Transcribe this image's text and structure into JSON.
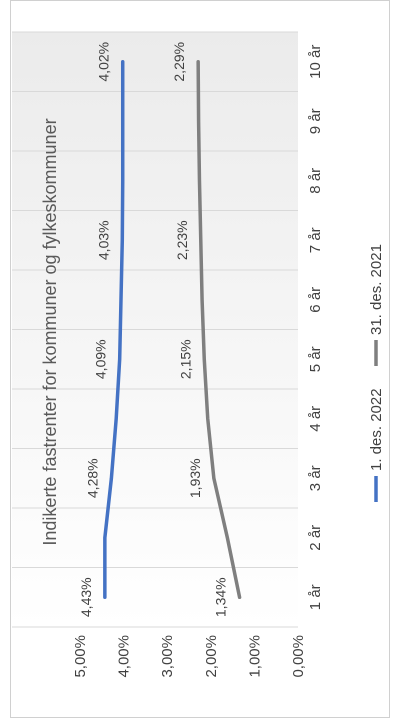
{
  "chart_data": {
    "type": "line",
    "orientation": "rotated-90-ccw",
    "title": "Indikerte fastrenter for kommuner og fylkeskommuner",
    "xlabel": "",
    "ylabel": "",
    "categories": [
      "1 år",
      "2 år",
      "3 år",
      "4 år",
      "5 år",
      "6 år",
      "7 år",
      "8 år",
      "9 år",
      "10 år"
    ],
    "ylim": [
      0,
      5
    ],
    "y_tick_labels": [
      "0,00%",
      "1,00%",
      "2,00%",
      "3,00%",
      "4,00%",
      "5,00%"
    ],
    "grid": true,
    "legend_position": "bottom",
    "series": [
      {
        "name": "1. des. 2022",
        "color": "#4472c4",
        "values": [
          4.43,
          4.43,
          4.28,
          4.17,
          4.09,
          4.06,
          4.03,
          4.02,
          4.02,
          4.02
        ],
        "data_labels": [
          {
            "index": 0,
            "text": "4,43%"
          },
          {
            "index": 2,
            "text": "4,28%"
          },
          {
            "index": 4,
            "text": "4,09%"
          },
          {
            "index": 6,
            "text": "4,03%"
          },
          {
            "index": 9,
            "text": "4,02%"
          }
        ]
      },
      {
        "name": "31. des. 2021",
        "color": "#7f7f7f",
        "values": [
          1.34,
          1.62,
          1.93,
          2.07,
          2.15,
          2.2,
          2.23,
          2.26,
          2.28,
          2.29
        ],
        "data_labels": [
          {
            "index": 0,
            "text": "1,34%"
          },
          {
            "index": 2,
            "text": "1,93%"
          },
          {
            "index": 4,
            "text": "2,15%"
          },
          {
            "index": 6,
            "text": "2,23%"
          },
          {
            "index": 9,
            "text": "2,29%"
          }
        ]
      }
    ]
  }
}
